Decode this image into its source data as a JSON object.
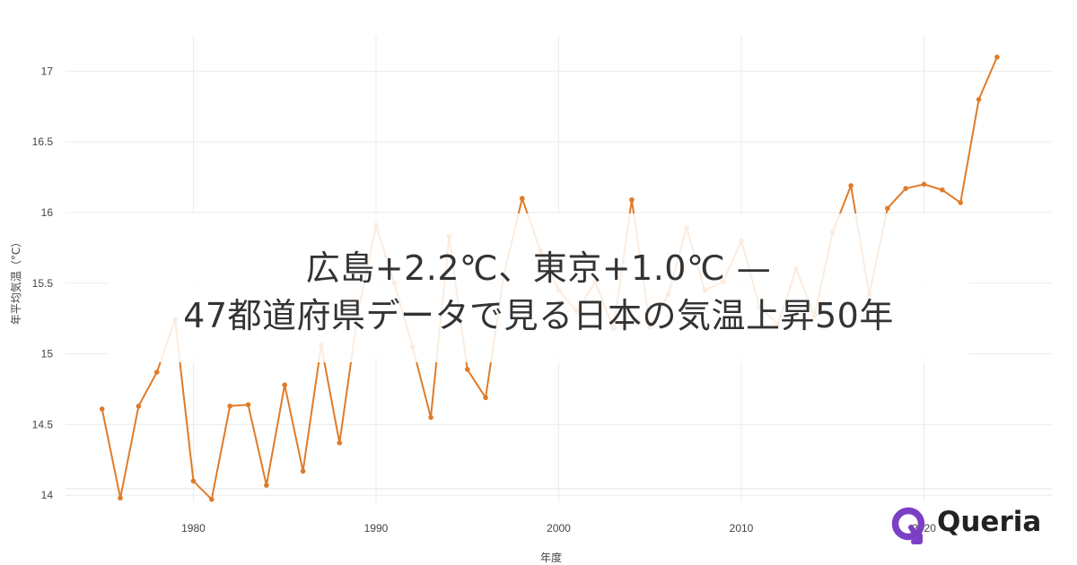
{
  "chart_data": {
    "type": "line",
    "xlabel": "年度",
    "ylabel": "年平均気温（°C）",
    "xlim": [
      1973,
      2027
    ],
    "ylim": [
      13.95,
      17.25
    ],
    "x_ticks": [
      1980,
      1990,
      2000,
      2010,
      2020
    ],
    "y_ticks": [
      14,
      14.5,
      15,
      15.5,
      16,
      16.5,
      17
    ],
    "grid": true,
    "series": [
      {
        "color": "#e07b28",
        "x": [
          1975,
          1976,
          1977,
          1978,
          1979,
          1980,
          1981,
          1982,
          1983,
          1984,
          1985,
          1986,
          1987,
          1988,
          1989,
          1990,
          1991,
          1992,
          1993,
          1994,
          1995,
          1996,
          1997,
          1998,
          1999,
          2000,
          2001,
          2002,
          2003,
          2004,
          2005,
          2006,
          2007,
          2008,
          2009,
          2010,
          2011,
          2012,
          2013,
          2014,
          2015,
          2016,
          2017,
          2018,
          2019,
          2020,
          2021,
          2022,
          2023,
          2024
        ],
        "y": [
          14.61,
          13.98,
          14.63,
          14.87,
          15.24,
          14.1,
          13.97,
          14.63,
          14.64,
          14.07,
          14.78,
          14.17,
          15.06,
          14.37,
          15.28,
          15.91,
          15.5,
          15.05,
          14.55,
          15.83,
          14.89,
          14.69,
          15.56,
          16.1,
          15.73,
          15.45,
          15.3,
          15.51,
          15.18,
          16.09,
          15.19,
          15.42,
          15.89,
          15.45,
          15.51,
          15.8,
          15.33,
          15.21,
          15.6,
          15.27,
          15.86,
          16.19,
          15.42,
          16.03,
          16.17,
          16.2,
          16.16,
          16.07,
          16.8,
          17.1
        ]
      }
    ]
  },
  "overlay": {
    "line1": "広島+2.2℃、東京+1.0℃ —",
    "line2": "47都道府県データで見る日本の気温上昇50年"
  },
  "brand": {
    "name": "Queria",
    "mark_color": "#7b3fc4",
    "logo_icon": "q-logo-icon"
  }
}
